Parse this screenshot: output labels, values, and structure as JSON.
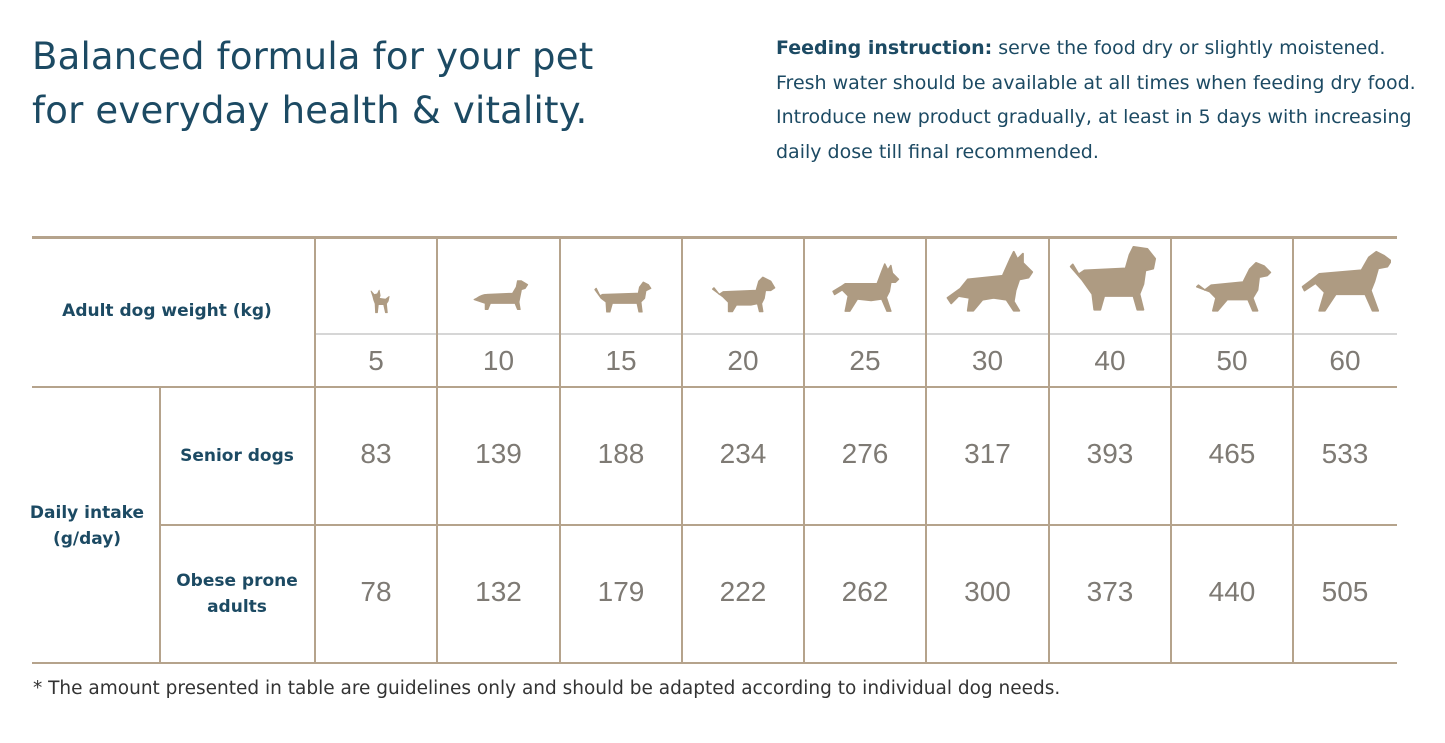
{
  "headline": {
    "line1": "Balanced formula for your pet",
    "line2": "for everyday health & vitality."
  },
  "instruction": {
    "label": "Feeding instruction:",
    "text": " serve the food dry or slightly moistened. Fresh water should be available at all times when feeding dry food. Introduce new product gradually, at least in 5 days with increasing daily dose till final recommended."
  },
  "table": {
    "weight_header": "Adult dog weight (kg)",
    "weights": [
      "5",
      "10",
      "15",
      "20",
      "25",
      "30",
      "40",
      "50",
      "60"
    ],
    "intake_header_line1": "Daily intake",
    "intake_header_line2": "(g/day)",
    "rows": [
      {
        "label_line1": "Senior dogs",
        "label_line2": "",
        "values": [
          "83",
          "139",
          "188",
          "234",
          "276",
          "317",
          "393",
          "465",
          "533"
        ]
      },
      {
        "label_line1": "Obese prone",
        "label_line2": "adults",
        "values": [
          "78",
          "132",
          "179",
          "222",
          "262",
          "300",
          "373",
          "440",
          "505"
        ]
      }
    ],
    "dog_icons": [
      "dog-chihuahua-icon",
      "dog-dachshund-icon",
      "dog-beagle-icon",
      "dog-bull-terrier-icon",
      "dog-pinscher-icon",
      "dog-shepherd-icon",
      "dog-airedale-icon",
      "dog-pointer-icon",
      "dog-great-dane-icon"
    ]
  },
  "footnote": "* The amount presented in table are guidelines only and should be adapted according to individual dog needs.",
  "colors": {
    "heading": "#1c4a63",
    "rule": "#b5a38c",
    "dog": "#ae9b82",
    "number": "#7e7a74"
  }
}
